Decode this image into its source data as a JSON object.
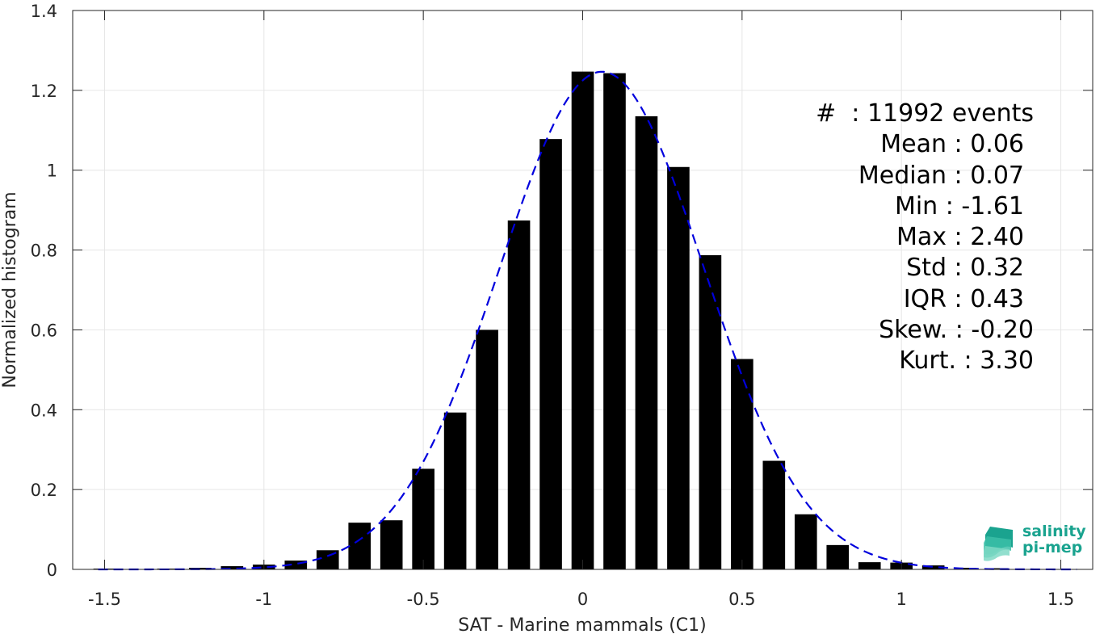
{
  "chart_data": {
    "type": "bar",
    "xlabel": "SAT - Marine mammals (C1)",
    "ylabel": "Normalized histogram",
    "xlim": [
      -1.6,
      1.6
    ],
    "ylim": [
      0,
      1.4
    ],
    "xticks": [
      "-1.5",
      "-1",
      "-0.5",
      "0",
      "0.5",
      "1",
      "1.5"
    ],
    "xtick_values": [
      -1.5,
      -1,
      -0.5,
      0,
      0.5,
      1,
      1.5
    ],
    "yticks": [
      "0",
      "0.2",
      "0.4",
      "0.6",
      "0.8",
      "1",
      "1.2",
      "1.4"
    ],
    "ytick_values": [
      0,
      0.2,
      0.4,
      0.6,
      0.8,
      1.0,
      1.2,
      1.4
    ],
    "grid": true,
    "bin_width": 0.1,
    "bars": {
      "x": [
        -1.5,
        -1.4,
        -1.3,
        -1.2,
        -1.1,
        -1.0,
        -0.9,
        -0.8,
        -0.7,
        -0.6,
        -0.5,
        -0.4,
        -0.3,
        -0.2,
        -0.1,
        0.0,
        0.1,
        0.2,
        0.3,
        0.4,
        0.5,
        0.6,
        0.7,
        0.8,
        0.9,
        1.0,
        1.1,
        1.2,
        1.3,
        1.4,
        1.5
      ],
      "values": [
        0.002,
        0.001,
        0.002,
        0.004,
        0.008,
        0.012,
        0.022,
        0.048,
        0.117,
        0.123,
        0.252,
        0.393,
        0.6,
        0.874,
        1.078,
        1.247,
        1.243,
        1.135,
        1.008,
        0.787,
        0.527,
        0.272,
        0.138,
        0.061,
        0.018,
        0.017,
        0.01,
        0.004,
        0.003,
        0.001,
        0.001
      ],
      "color": "#000000"
    },
    "fit_curve": {
      "kind": "gaussian",
      "mean": 0.06,
      "std": 0.32,
      "color": "#0000dd",
      "style": "dashed"
    }
  },
  "stats": [
    "#  : 11992 events",
    "Mean : 0.06",
    "Median : 0.07",
    "Min : -1.61",
    "Max : 2.40",
    "Std : 0.32",
    "IQR : 0.43",
    "Skew. : -0.20",
    "Kurt. : 3.30"
  ],
  "logo": {
    "line1": "salinity",
    "line2": "pi-mep",
    "color": "#1aa38f"
  }
}
